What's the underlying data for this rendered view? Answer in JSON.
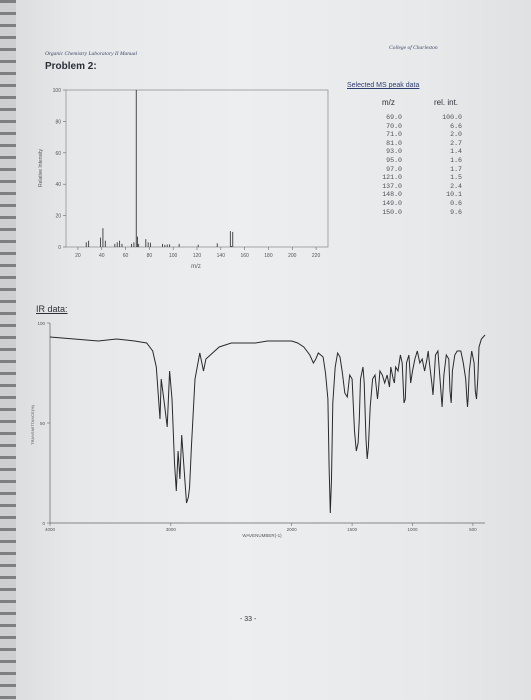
{
  "header": {
    "course_title": "Organic Chemistry Laboratory II Manual",
    "college": "College of Charleston",
    "problem_title": "Problem 2:"
  },
  "ms_peak_table": {
    "title": "Selected MS peak data",
    "col_mz_label": "m/z",
    "col_int_label": "rel. int.",
    "mz": [
      "69.0",
      "70.0",
      "71.0",
      "81.0",
      "93.0",
      "95.0",
      "97.0",
      "121.0",
      "137.0",
      "148.0",
      "149.0",
      "150.0"
    ],
    "rel_int": [
      "100.0",
      "6.6",
      "2.0",
      "2.7",
      "1.4",
      "1.6",
      "1.7",
      "1.5",
      "2.4",
      "10.1",
      "0.6",
      "9.6"
    ]
  },
  "ir_label": "IR data:",
  "page_number": "- 33 -",
  "chart_data": [
    {
      "type": "bar",
      "xlabel": "m/z",
      "ylabel": "Relative Intensity",
      "xlim": [
        10,
        230
      ],
      "ylim": [
        0,
        100
      ],
      "x_ticks": [
        "20",
        "40",
        "60",
        "80",
        "100",
        "120",
        "140",
        "160",
        "180",
        "200",
        "220"
      ],
      "y_ticks": [
        "0",
        "20",
        "40",
        "60",
        "80",
        "100"
      ],
      "peaks": [
        {
          "x": 27,
          "y": 3
        },
        {
          "x": 29,
          "y": 4
        },
        {
          "x": 39,
          "y": 6
        },
        {
          "x": 41,
          "y": 12
        },
        {
          "x": 43,
          "y": 4
        },
        {
          "x": 51,
          "y": 2
        },
        {
          "x": 53,
          "y": 3
        },
        {
          "x": 55,
          "y": 4
        },
        {
          "x": 57,
          "y": 2
        },
        {
          "x": 65,
          "y": 2
        },
        {
          "x": 67,
          "y": 3
        },
        {
          "x": 69,
          "y": 100
        },
        {
          "x": 70,
          "y": 6.6
        },
        {
          "x": 71,
          "y": 2.0
        },
        {
          "x": 77,
          "y": 5
        },
        {
          "x": 79,
          "y": 3
        },
        {
          "x": 81,
          "y": 2.7
        },
        {
          "x": 91,
          "y": 2
        },
        {
          "x": 93,
          "y": 1.4
        },
        {
          "x": 95,
          "y": 1.6
        },
        {
          "x": 97,
          "y": 1.7
        },
        {
          "x": 105,
          "y": 2
        },
        {
          "x": 121,
          "y": 1.5
        },
        {
          "x": 137,
          "y": 2.4
        },
        {
          "x": 148,
          "y": 10.1
        },
        {
          "x": 149,
          "y": 0.6
        },
        {
          "x": 150,
          "y": 9.6
        }
      ],
      "colors": {
        "line": "#3a3a3a"
      }
    },
    {
      "type": "line",
      "xlabel": "WAVENUMBER(-1)",
      "ylabel": "TRANSMITTANCE(%)",
      "xlim": [
        4000,
        400
      ],
      "ylim": [
        0,
        100
      ],
      "x_ticks": [
        "4000",
        "3000",
        "2000",
        "1500",
        "1000",
        "500"
      ],
      "y_ticks": [
        "0",
        "50",
        "100"
      ],
      "points": [
        [
          4000,
          93
        ],
        [
          3800,
          92
        ],
        [
          3600,
          91
        ],
        [
          3450,
          92
        ],
        [
          3300,
          91
        ],
        [
          3200,
          90
        ],
        [
          3150,
          86
        ],
        [
          3120,
          78
        ],
        [
          3090,
          52
        ],
        [
          3080,
          72
        ],
        [
          3050,
          58
        ],
        [
          3030,
          48
        ],
        [
          3010,
          76
        ],
        [
          2990,
          62
        ],
        [
          2970,
          30
        ],
        [
          2955,
          16
        ],
        [
          2940,
          36
        ],
        [
          2925,
          22
        ],
        [
          2910,
          44
        ],
        [
          2870,
          10
        ],
        [
          2855,
          13
        ],
        [
          2845,
          18
        ],
        [
          2830,
          38
        ],
        [
          2800,
          72
        ],
        [
          2760,
          85
        ],
        [
          2730,
          76
        ],
        [
          2710,
          82
        ],
        [
          2600,
          88
        ],
        [
          2500,
          90
        ],
        [
          2400,
          90
        ],
        [
          2300,
          90
        ],
        [
          2200,
          91
        ],
        [
          2100,
          91
        ],
        [
          2000,
          91
        ],
        [
          1950,
          90
        ],
        [
          1900,
          88
        ],
        [
          1850,
          84
        ],
        [
          1820,
          80
        ],
        [
          1800,
          82
        ],
        [
          1780,
          85
        ],
        [
          1740,
          83
        ],
        [
          1720,
          75
        ],
        [
          1700,
          62
        ],
        [
          1690,
          28
        ],
        [
          1680,
          5
        ],
        [
          1670,
          22
        ],
        [
          1660,
          60
        ],
        [
          1640,
          78
        ],
        [
          1620,
          85
        ],
        [
          1600,
          83
        ],
        [
          1580,
          75
        ],
        [
          1560,
          65
        ],
        [
          1540,
          63
        ],
        [
          1520,
          74
        ],
        [
          1500,
          72
        ],
        [
          1480,
          46
        ],
        [
          1465,
          36
        ],
        [
          1450,
          40
        ],
        [
          1440,
          52
        ],
        [
          1430,
          72
        ],
        [
          1410,
          78
        ],
        [
          1400,
          70
        ],
        [
          1385,
          42
        ],
        [
          1375,
          32
        ],
        [
          1365,
          38
        ],
        [
          1350,
          58
        ],
        [
          1330,
          72
        ],
        [
          1310,
          74
        ],
        [
          1290,
          62
        ],
        [
          1280,
          68
        ],
        [
          1270,
          76
        ],
        [
          1250,
          74
        ],
        [
          1230,
          70
        ],
        [
          1210,
          74
        ],
        [
          1190,
          68
        ],
        [
          1180,
          78
        ],
        [
          1160,
          72
        ],
        [
          1150,
          70
        ],
        [
          1140,
          78
        ],
        [
          1120,
          76
        ],
        [
          1100,
          84
        ],
        [
          1085,
          80
        ],
        [
          1070,
          60
        ],
        [
          1060,
          62
        ],
        [
          1050,
          80
        ],
        [
          1030,
          84
        ],
        [
          1015,
          70
        ],
        [
          1000,
          76
        ],
        [
          980,
          82
        ],
        [
          960,
          86
        ],
        [
          940,
          80
        ],
        [
          920,
          82
        ],
        [
          900,
          76
        ],
        [
          880,
          82
        ],
        [
          870,
          86
        ],
        [
          860,
          80
        ],
        [
          840,
          70
        ],
        [
          830,
          64
        ],
        [
          820,
          74
        ],
        [
          810,
          84
        ],
        [
          790,
          86
        ],
        [
          770,
          70
        ],
        [
          755,
          58
        ],
        [
          740,
          74
        ],
        [
          720,
          84
        ],
        [
          700,
          82
        ],
        [
          690,
          66
        ],
        [
          680,
          60
        ],
        [
          670,
          76
        ],
        [
          650,
          84
        ],
        [
          630,
          86
        ],
        [
          600,
          86
        ],
        [
          580,
          80
        ],
        [
          560,
          72
        ],
        [
          550,
          62
        ],
        [
          545,
          58
        ],
        [
          540,
          62
        ],
        [
          530,
          76
        ],
        [
          510,
          86
        ],
        [
          490,
          80
        ],
        [
          480,
          66
        ],
        [
          470,
          62
        ],
        [
          460,
          72
        ],
        [
          450,
          88
        ],
        [
          430,
          92
        ],
        [
          400,
          94
        ]
      ],
      "colors": {
        "line": "#2a2a2a"
      }
    }
  ]
}
